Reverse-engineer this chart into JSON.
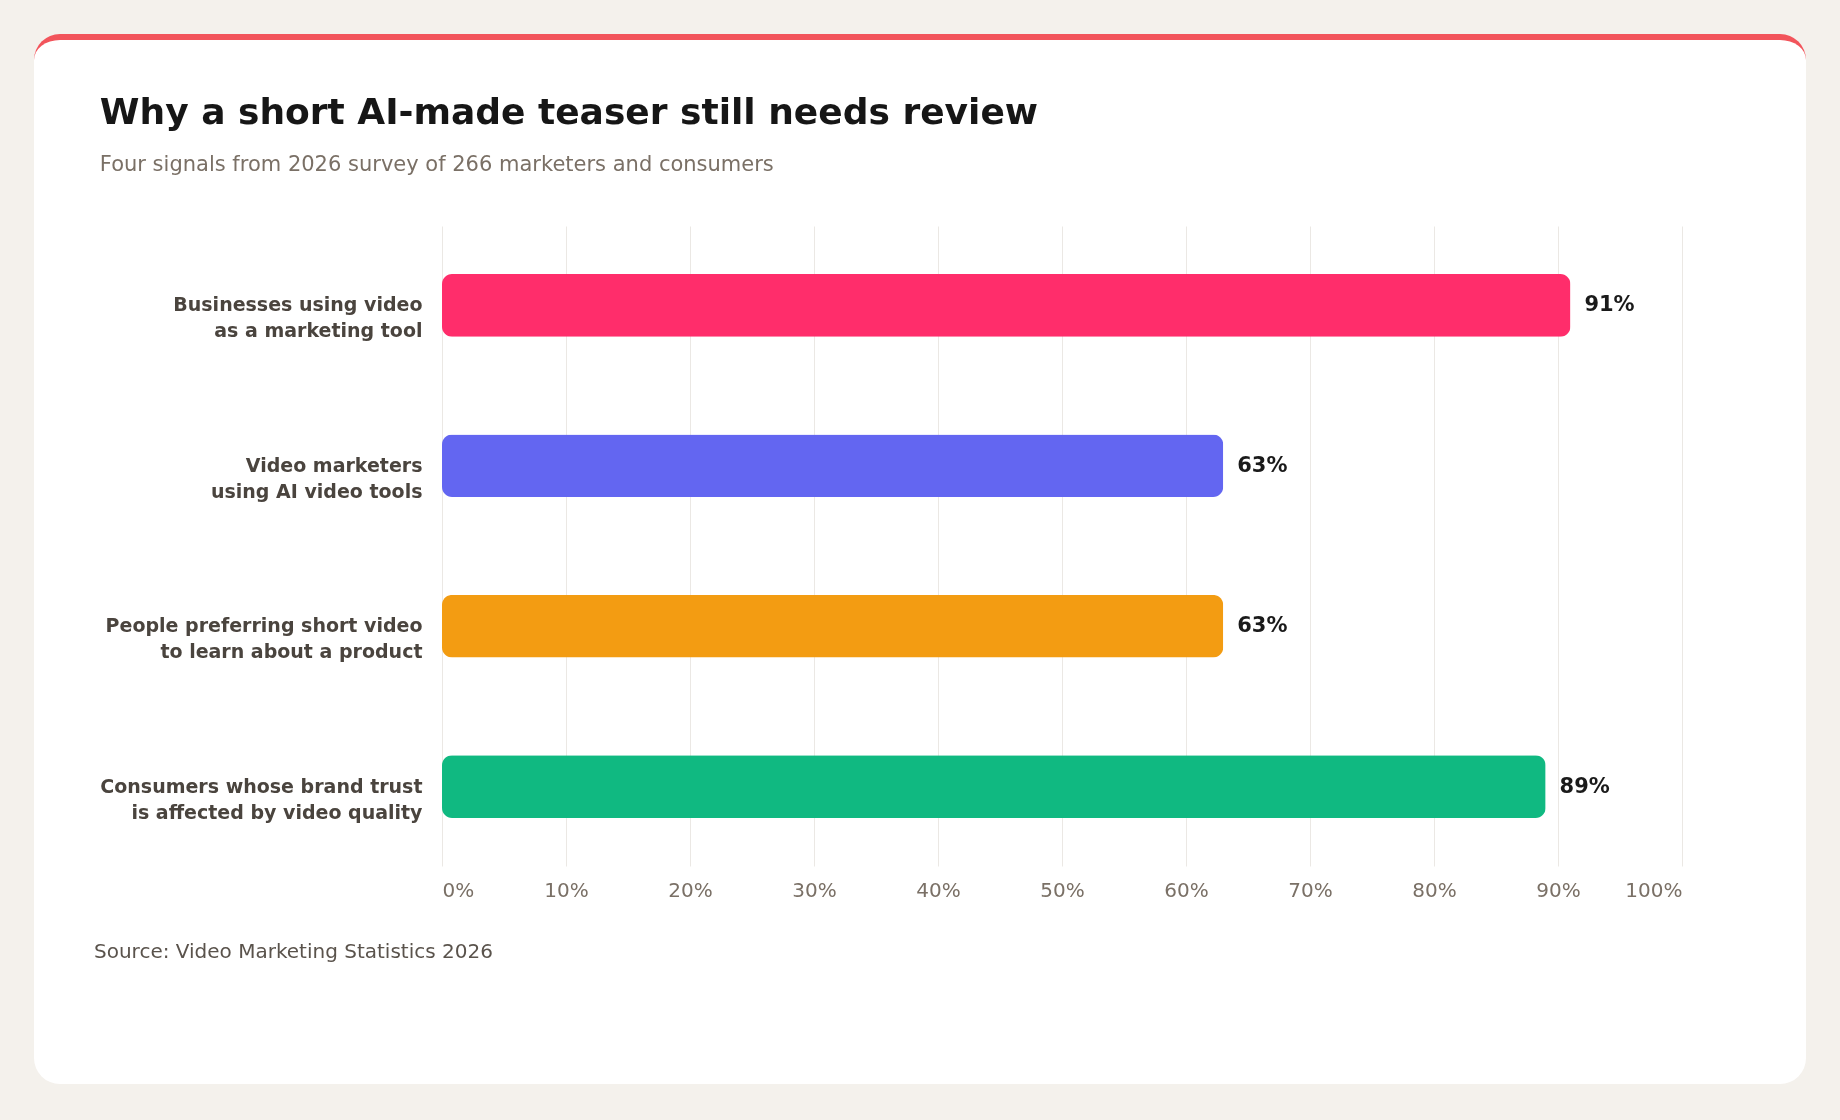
{
  "chart_data": {
    "type": "bar",
    "orientation": "horizontal",
    "title": "Why a short AI-made teaser still needs review",
    "subtitle": "Four signals from 2026 survey of 266 marketers and consumers",
    "categories": [
      "Businesses using video as a marketing tool",
      "Video marketers using AI video tools",
      "People preferring short video to learn about a product",
      "Consumers whose brand trust is affected by video quality"
    ],
    "values": [
      91,
      63,
      63,
      89
    ],
    "colors": [
      "#ff2d6b",
      "#6366f1",
      "#f39c12",
      "#10b981"
    ],
    "value_labels": [
      "91%",
      "63%",
      "63%",
      "89%"
    ],
    "xlim": [
      0,
      100
    ],
    "xticks": [
      {
        "value": 0,
        "label": "0%"
      },
      {
        "value": 10,
        "label": "10%"
      },
      {
        "value": 20,
        "label": "20%"
      },
      {
        "value": 30,
        "label": "30%"
      },
      {
        "value": 40,
        "label": "40%"
      },
      {
        "value": 50,
        "label": "50%"
      },
      {
        "value": 60,
        "label": "60%"
      },
      {
        "value": 70,
        "label": "70%"
      },
      {
        "value": 80,
        "label": "80%"
      },
      {
        "value": 90,
        "label": "90%"
      },
      {
        "value": 100,
        "label": "100%"
      }
    ],
    "grid": "x",
    "annotations": [
      "Source: Video Marketing Statistics 2026"
    ]
  }
}
